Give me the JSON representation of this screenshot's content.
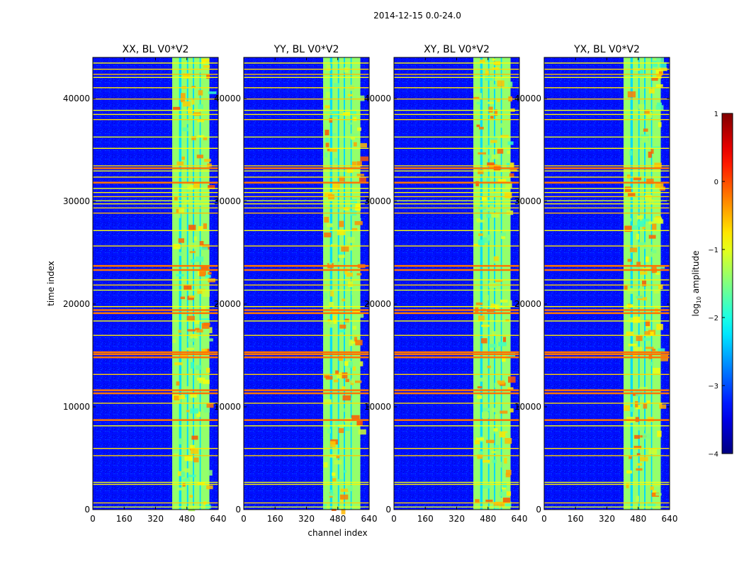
{
  "figure": {
    "suptitle": "2014-12-15 0.0-24.0"
  },
  "chart_data": [
    {
      "type": "heatmap",
      "title": "XX, BL V0*V2",
      "xlabel": "",
      "ylabel": "time index",
      "xlim": [
        0,
        640
      ],
      "ylim": [
        0,
        44000
      ],
      "xticks": [
        0,
        160,
        320,
        480,
        640
      ],
      "yticks": [
        0,
        10000,
        20000,
        30000,
        40000
      ]
    },
    {
      "type": "heatmap",
      "title": "YY, BL V0*V2",
      "xlabel": "channel index",
      "ylabel": "",
      "xlim": [
        0,
        640
      ],
      "ylim": [
        0,
        44000
      ],
      "xticks": [
        0,
        160,
        320,
        480,
        640
      ],
      "yticks": [
        0,
        10000,
        20000,
        30000,
        40000
      ]
    },
    {
      "type": "heatmap",
      "title": "XY, BL V0*V2",
      "xlabel": "",
      "ylabel": "",
      "xlim": [
        0,
        640
      ],
      "ylim": [
        0,
        44000
      ],
      "xticks": [
        0,
        160,
        320,
        480,
        640
      ],
      "yticks": [
        0,
        10000,
        20000,
        30000,
        40000
      ]
    },
    {
      "type": "heatmap",
      "title": "YX, BL V0*V2",
      "xlabel": "",
      "ylabel": "",
      "xlim": [
        0,
        640
      ],
      "ylim": [
        0,
        44000
      ],
      "xticks": [
        0,
        160,
        320,
        480,
        640
      ],
      "yticks": [
        0,
        10000,
        20000,
        30000,
        40000
      ]
    }
  ],
  "colorbar": {
    "label": "log",
    "label_sub": "10",
    "label_rest": " amplitude",
    "range": [
      -4,
      1
    ],
    "ticks": [
      {
        "v": 1,
        "t": "1"
      },
      {
        "v": 0,
        "t": "0"
      },
      {
        "v": -1,
        "t": "−1"
      },
      {
        "v": -2,
        "t": "−2"
      },
      {
        "v": -3,
        "t": "−3"
      },
      {
        "v": -4,
        "t": "−4"
      }
    ],
    "colormap": "jet"
  },
  "features": {
    "background_log_amp": -3.3,
    "band_channel_range": [
      405,
      595
    ],
    "band_log_amp": -1.4,
    "band_gaps": [
      [
        440,
        452
      ],
      [
        480,
        487
      ],
      [
        510,
        517
      ],
      [
        545,
        551
      ]
    ],
    "rfi_time_rows": [
      300,
      700,
      2500,
      2700,
      5300,
      6000,
      8200,
      8800,
      10400,
      11400,
      11700,
      13200,
      14900,
      15200,
      15400,
      17000,
      18400,
      19200,
      19500,
      19800,
      21400,
      21900,
      22400,
      23400,
      23800,
      25700,
      27200,
      28900,
      29400,
      29800,
      30100,
      30500,
      30900,
      31300,
      31900,
      32400,
      33000,
      33300,
      33500,
      35200,
      36300,
      38000,
      38500,
      38900,
      40000,
      41100,
      42100,
      42400,
      42900,
      43500
    ],
    "strong_rows": [
      8800,
      11400,
      11700,
      14900,
      15200,
      15400,
      19200,
      19500,
      23400,
      23800,
      31900,
      33300
    ]
  }
}
